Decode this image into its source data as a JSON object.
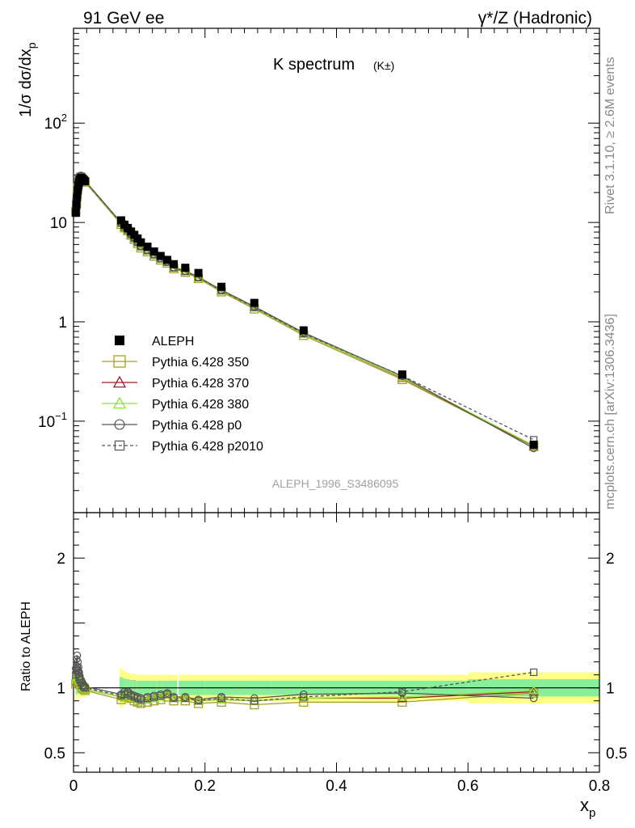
{
  "header": {
    "left": "91 GeV ee",
    "right": "γ*/Z (Hadronic)"
  },
  "side": {
    "rivet": "Rivet 3.1.10, ≥ 2.6M events",
    "mcplots": "mcplots.cern.ch [arXiv:1306.3436]"
  },
  "chart_data": {
    "type": "line",
    "title": "K spectrum",
    "title_sub": "(K±)",
    "ylabel": "1/σ dσ/dx_p",
    "ylabel_main": "1/σ dσ/dx",
    "ylabel_sub": "p",
    "xlabel_main": "x",
    "xlabel_sub": "p",
    "ratio_ylabel": "Ratio to ALEPH",
    "watermark": "ALEPH_1996_S3486095",
    "x_range": [
      0,
      0.8
    ],
    "y_range_log": [
      0.012,
      900
    ],
    "ratio_range": [
      0.35,
      2.35
    ],
    "x_ticks": [
      "0",
      "0.2",
      "0.4",
      "0.6",
      "0.8"
    ],
    "x_tick_values": [
      0,
      0.2,
      0.4,
      0.6,
      0.8
    ],
    "y_ticks": [
      {
        "v": 100,
        "base": "10",
        "exp": "2"
      },
      {
        "v": 10,
        "base": "10",
        "exp": ""
      },
      {
        "v": 1,
        "base": "1",
        "exp": ""
      },
      {
        "v": 0.1,
        "base": "10",
        "exp": "−1"
      }
    ],
    "ratio_ticks": [
      {
        "v": 2,
        "label": "2"
      },
      {
        "v": 1,
        "label": "1"
      },
      {
        "v": 0.5,
        "label": "0.5"
      }
    ],
    "x": [
      0.0035,
      0.0045,
      0.0055,
      0.0065,
      0.0075,
      0.0085,
      0.0095,
      0.0115,
      0.0135,
      0.0155,
      0.0175,
      0.0725,
      0.0775,
      0.0825,
      0.0875,
      0.0925,
      0.0975,
      0.1025,
      0.1125,
      0.1225,
      0.1325,
      0.1425,
      0.1525,
      0.17,
      0.19,
      0.225,
      0.275,
      0.35,
      0.5,
      0.7
    ],
    "aleph": [
      12.5,
      15.0,
      18.0,
      21.0,
      23.5,
      25.5,
      27.0,
      28.0,
      27.5,
      26.8,
      26.0,
      10.5,
      9.5,
      8.8,
      8.1,
      7.5,
      6.9,
      6.3,
      5.7,
      5.1,
      4.6,
      4.2,
      3.8,
      3.5,
      3.1,
      2.25,
      1.55,
      0.82,
      0.295,
      0.058
    ],
    "aleph_err_rel": [
      0.1,
      0.09,
      0.09,
      0.08,
      0.08,
      0.08,
      0.08,
      0.07,
      0.07,
      0.07,
      0.07,
      0.15,
      0.13,
      0.12,
      0.11,
      0.11,
      0.1,
      0.1,
      0.1,
      0.1,
      0.1,
      0.1,
      0.1,
      0.1,
      0.1,
      0.1,
      0.1,
      0.1,
      0.1,
      0.12
    ],
    "series": [
      {
        "name": "ALEPH",
        "marker": "filled-square",
        "color": "#000000",
        "dash": false
      },
      {
        "name": "Pythia 6.428 350",
        "marker": "open-square",
        "color": "#a6a121",
        "dash": false,
        "ratio": [
          1.03,
          1.05,
          1.08,
          1.07,
          1.06,
          1.04,
          1.03,
          1.02,
          1.0,
          0.99,
          0.98,
          0.91,
          0.93,
          0.94,
          0.92,
          0.9,
          0.89,
          0.88,
          0.89,
          0.9,
          0.91,
          0.93,
          0.9,
          0.9,
          0.88,
          0.89,
          0.87,
          0.89,
          0.89,
          0.96
        ]
      },
      {
        "name": "Pythia 6.428 370",
        "marker": "open-triangle",
        "color": "#9b1c28",
        "dash": false,
        "ratio": [
          1.06,
          1.08,
          1.1,
          1.09,
          1.08,
          1.06,
          1.05,
          1.03,
          1.01,
          1.0,
          0.99,
          0.93,
          0.94,
          0.95,
          0.93,
          0.92,
          0.91,
          0.9,
          0.91,
          0.92,
          0.93,
          0.95,
          0.92,
          0.92,
          0.9,
          0.91,
          0.9,
          0.92,
          0.92,
          0.97
        ]
      },
      {
        "name": "Pythia 6.428 380",
        "marker": "open-triangle",
        "color": "#8ae234",
        "dash": false,
        "ratio": [
          1.06,
          1.08,
          1.1,
          1.09,
          1.08,
          1.06,
          1.05,
          1.03,
          1.01,
          1.0,
          0.99,
          0.93,
          0.94,
          0.95,
          0.93,
          0.92,
          0.91,
          0.9,
          0.91,
          0.92,
          0.93,
          0.95,
          0.92,
          0.92,
          0.9,
          0.91,
          0.9,
          0.92,
          0.93,
          0.98
        ]
      },
      {
        "name": "Pythia 6.428 p0",
        "marker": "open-circle",
        "color": "#555555",
        "dash": false,
        "ratio": [
          1.15,
          1.22,
          1.25,
          1.2,
          1.16,
          1.12,
          1.09,
          1.06,
          1.04,
          1.02,
          1.01,
          0.95,
          0.97,
          0.97,
          0.95,
          0.94,
          0.93,
          0.92,
          0.93,
          0.94,
          0.95,
          0.96,
          0.93,
          0.93,
          0.91,
          0.93,
          0.92,
          0.95,
          0.96,
          0.92
        ]
      },
      {
        "name": "Pythia 6.428 p2010",
        "marker": "open-square-small",
        "color": "#555555",
        "dash": true,
        "ratio": [
          1.1,
          1.14,
          1.16,
          1.13,
          1.11,
          1.08,
          1.06,
          1.04,
          1.02,
          1.01,
          1.0,
          0.94,
          0.95,
          0.96,
          0.94,
          0.93,
          0.92,
          0.91,
          0.92,
          0.93,
          0.94,
          0.95,
          0.92,
          0.92,
          0.9,
          0.92,
          0.9,
          0.93,
          0.97,
          1.12
        ]
      }
    ],
    "legend_position": "lower-left",
    "grid": false,
    "log_y": true
  }
}
